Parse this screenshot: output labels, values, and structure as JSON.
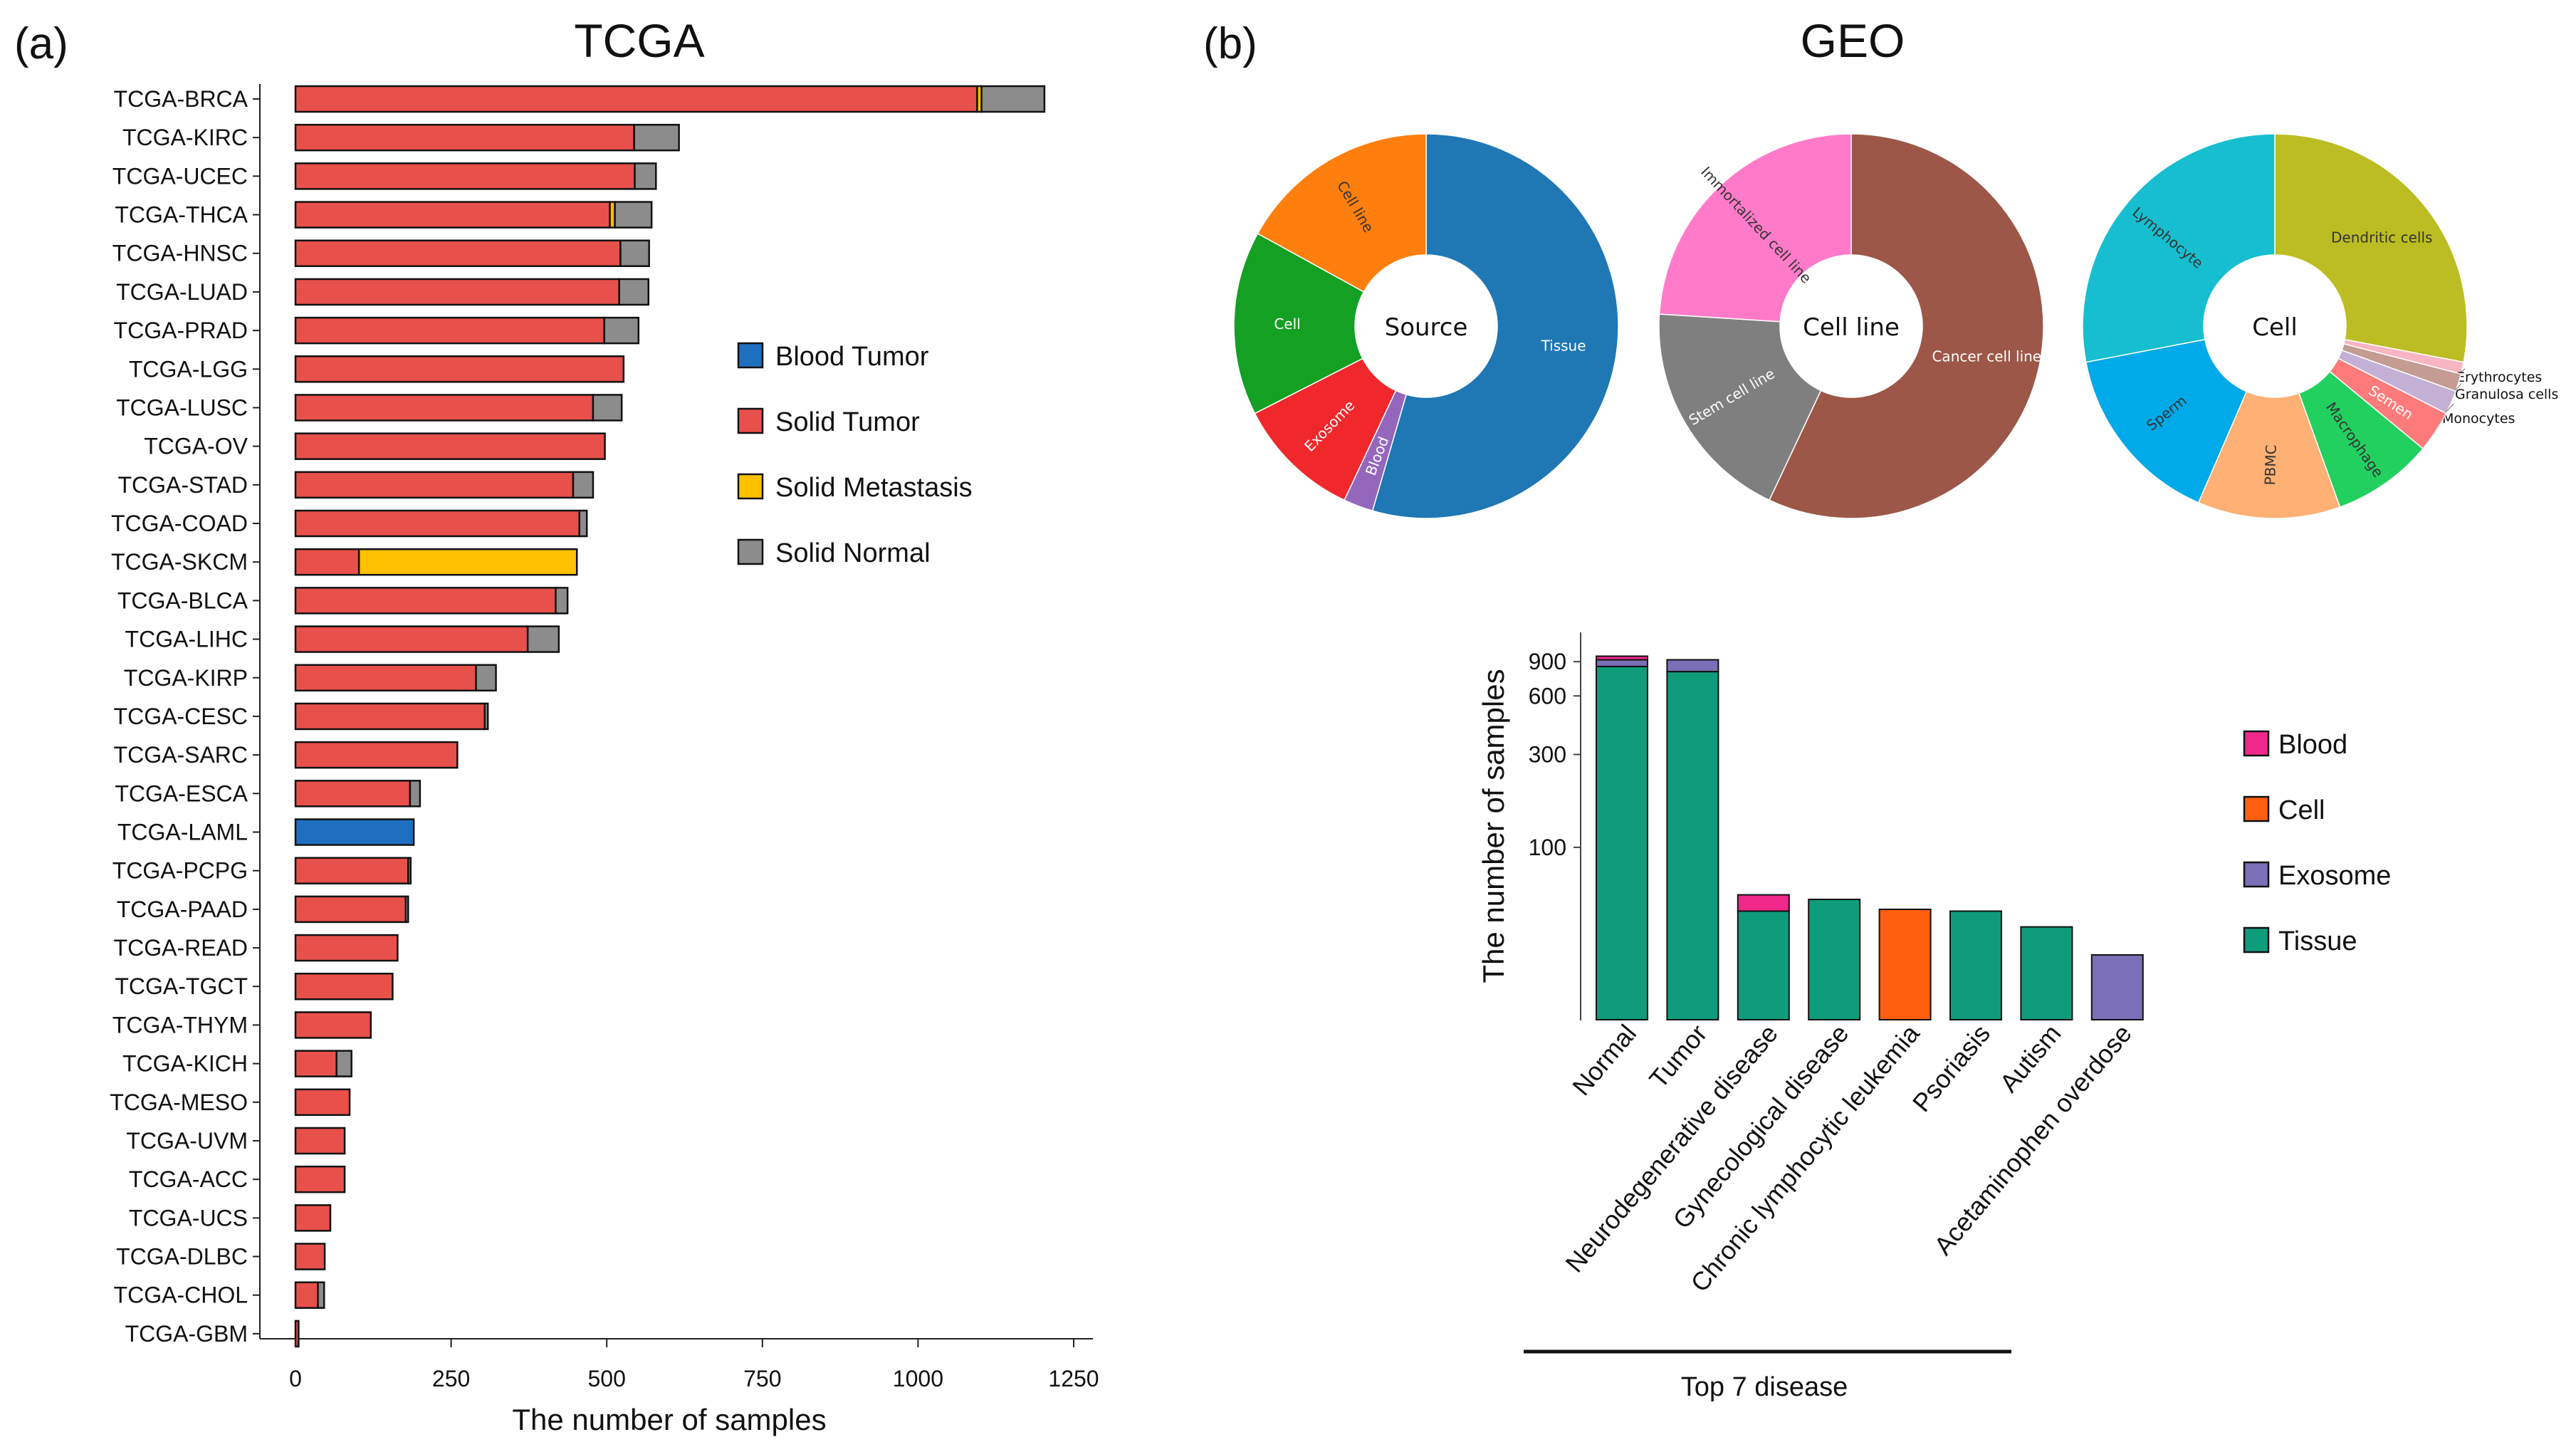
{
  "panels": {
    "a": {
      "label": "(a)",
      "title": "TCGA"
    },
    "b": {
      "label": "(b)",
      "title": "GEO"
    }
  },
  "chart_data": [
    {
      "id": "tcga_bar",
      "type": "bar",
      "orientation": "horizontal",
      "stacked": true,
      "title": "TCGA",
      "xlabel": "The number of samples",
      "ylabel": "",
      "xlim": [
        0,
        1250
      ],
      "xticks": [
        0,
        250,
        500,
        750,
        1000,
        1250
      ],
      "categories": [
        "TCGA-BRCA",
        "TCGA-KIRC",
        "TCGA-UCEC",
        "TCGA-THCA",
        "TCGA-HNSC",
        "TCGA-LUAD",
        "TCGA-PRAD",
        "TCGA-LGG",
        "TCGA-LUSC",
        "TCGA-OV",
        "TCGA-STAD",
        "TCGA-COAD",
        "TCGA-SKCM",
        "TCGA-BLCA",
        "TCGA-LIHC",
        "TCGA-KIRP",
        "TCGA-CESC",
        "TCGA-SARC",
        "TCGA-ESCA",
        "TCGA-LAML",
        "TCGA-PCPG",
        "TCGA-PAAD",
        "TCGA-READ",
        "TCGA-TGCT",
        "TCGA-THYM",
        "TCGA-KICH",
        "TCGA-MESO",
        "TCGA-UVM",
        "TCGA-ACC",
        "TCGA-UCS",
        "TCGA-DLBC",
        "TCGA-CHOL",
        "TCGA-GBM"
      ],
      "series": [
        {
          "name": "Blood Tumor",
          "color": "#1f6fc0",
          "values": [
            0,
            0,
            0,
            0,
            0,
            0,
            0,
            0,
            0,
            0,
            0,
            0,
            0,
            0,
            0,
            0,
            0,
            0,
            0,
            190,
            0,
            0,
            0,
            0,
            0,
            0,
            0,
            0,
            0,
            0,
            0,
            0,
            0
          ]
        },
        {
          "name": "Solid Tumor",
          "color": "#e8504b",
          "values": [
            1095,
            544,
            545,
            505,
            522,
            520,
            496,
            527,
            478,
            497,
            446,
            456,
            102,
            418,
            373,
            290,
            304,
            260,
            184,
            0,
            181,
            177,
            164,
            156,
            121,
            66,
            87,
            79,
            79,
            56,
            47,
            36,
            5
          ]
        },
        {
          "name": "Solid Metastasis",
          "color": "#ffc000",
          "values": [
            7,
            0,
            0,
            8,
            0,
            0,
            0,
            0,
            0,
            0,
            0,
            0,
            350,
            0,
            0,
            0,
            0,
            0,
            0,
            0,
            0,
            0,
            0,
            0,
            0,
            0,
            0,
            0,
            0,
            0,
            0,
            0,
            0
          ]
        },
        {
          "name": "Solid Normal",
          "color": "#8c8c8c",
          "values": [
            101,
            72,
            34,
            59,
            46,
            47,
            55,
            0,
            46,
            0,
            32,
            12,
            0,
            19,
            50,
            32,
            5,
            0,
            16,
            0,
            4,
            4,
            0,
            0,
            0,
            24,
            0,
            0,
            0,
            0,
            0,
            10,
            0
          ]
        }
      ],
      "legend": {
        "position": "right"
      }
    },
    {
      "id": "source_donut",
      "type": "pie",
      "variant": "donut",
      "center_label": "Source",
      "slices": [
        {
          "label": "Tissue",
          "value": 54.5,
          "color": "#1f77b4"
        },
        {
          "label": "Blood",
          "value": 2.5,
          "color": "#9467bd"
        },
        {
          "label": "Exosome",
          "value": 10.5,
          "color": "#f0282c"
        },
        {
          "label": "Cell",
          "value": 15.5,
          "color": "#14a023"
        },
        {
          "label": "Cell line",
          "value": 17.0,
          "color": "#ff7f0e"
        }
      ]
    },
    {
      "id": "cellline_donut",
      "type": "pie",
      "variant": "donut",
      "center_label": "Cell line",
      "slices": [
        {
          "label": "Cancer cell line",
          "value": 57.0,
          "color": "#9c5748"
        },
        {
          "label": "Stem cell line",
          "value": 19.0,
          "color": "#7f7f7f"
        },
        {
          "label": "Immortalized cell line",
          "value": 24.0,
          "color": "#ff7bc9"
        }
      ]
    },
    {
      "id": "cell_donut",
      "type": "pie",
      "variant": "donut",
      "center_label": "Cell",
      "slices": [
        {
          "label": "Dendritic cells",
          "value": 28.0,
          "color": "#bcbd22"
        },
        {
          "label": "Erythrocytes",
          "value": 1.0,
          "color": "#f7b6c2"
        },
        {
          "label": "Granulosa cells",
          "value": 1.5,
          "color": "#c49c94"
        },
        {
          "label": "Monocytes",
          "value": 2.0,
          "color": "#c5b0d5"
        },
        {
          "label": "Semen",
          "value": 3.5,
          "color": "#ff7b7b"
        },
        {
          "label": "Macrophage",
          "value": 8.5,
          "color": "#22d05f"
        },
        {
          "label": "PBMC",
          "value": 12.0,
          "color": "#ffb074"
        },
        {
          "label": "Sperm",
          "value": 15.5,
          "color": "#00a9e8"
        },
        {
          "label": "Lymphocyte",
          "value": 28.0,
          "color": "#17becf"
        }
      ]
    },
    {
      "id": "geo_disease_bar",
      "type": "bar",
      "stacked": true,
      "ylabel": "The number of samples",
      "xlabel": "Top 7 disease",
      "yscale": "log",
      "yticks": [
        100,
        300,
        600,
        900
      ],
      "categories": [
        "Normal",
        "Tumor",
        "Neurodegenerative disease",
        "Gynecological disease",
        "Chronic lymphocytic leukemia",
        "Psoriasis",
        "Autism",
        "Acetaminophen overdose"
      ],
      "series": [
        {
          "name": "Tissue",
          "color": "#0f9c7a",
          "values": [
            850,
            800,
            47,
            54,
            0,
            47,
            39,
            0
          ]
        },
        {
          "name": "Exosome",
          "color": "#7b6fb7",
          "values": [
            70,
            120,
            0,
            0,
            0,
            0,
            0,
            28
          ]
        },
        {
          "name": "Cell",
          "color": "#ff5e0e",
          "values": [
            0,
            0,
            0,
            0,
            48,
            0,
            0,
            0
          ]
        },
        {
          "name": "Blood",
          "color": "#f0288a",
          "values": [
            40,
            0,
            10,
            0,
            0,
            0,
            0,
            0
          ]
        }
      ],
      "legend": {
        "position": "right",
        "order": [
          "Blood",
          "Cell",
          "Exosome",
          "Tissue"
        ]
      }
    }
  ]
}
